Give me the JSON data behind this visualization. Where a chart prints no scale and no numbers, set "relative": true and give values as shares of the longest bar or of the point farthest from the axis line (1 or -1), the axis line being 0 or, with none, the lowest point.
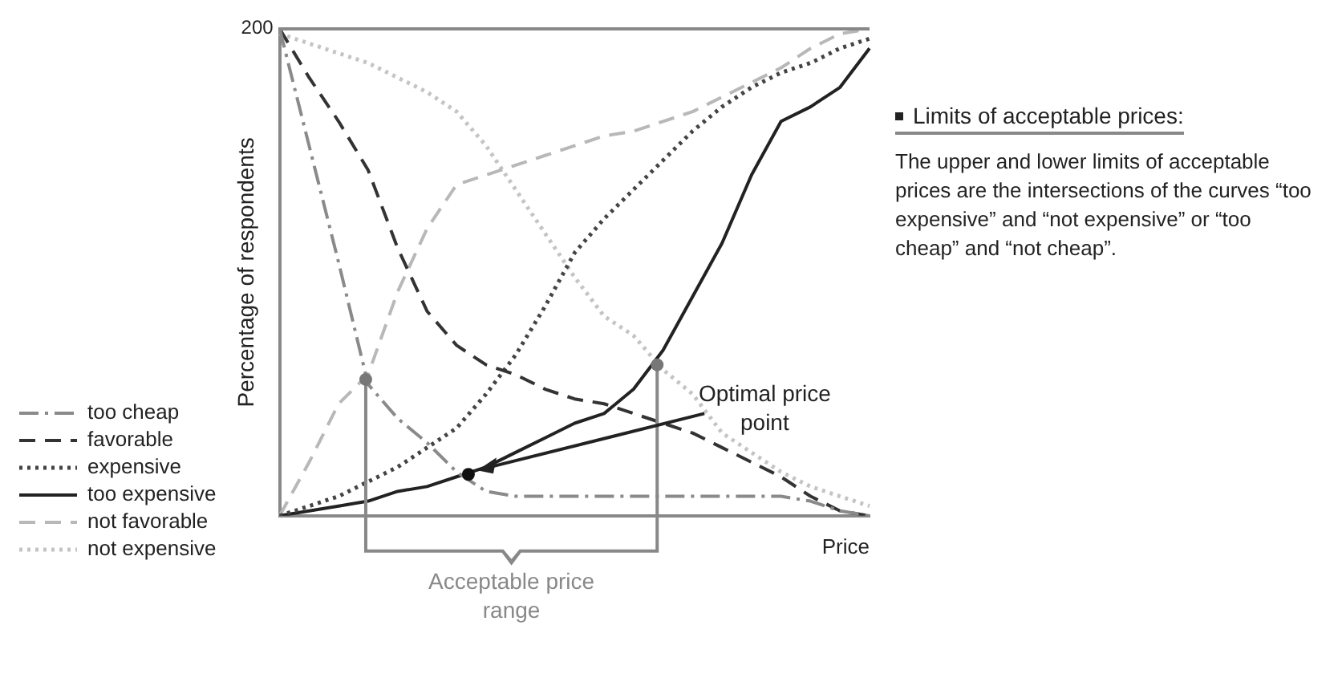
{
  "chart_data": {
    "type": "line",
    "relative": true,
    "xlabel": "Price",
    "ylabel": "Percentage of respondents",
    "legend": "left",
    "marker": "none",
    "categories": [
      null,
      null,
      null,
      null,
      null,
      null,
      null,
      null,
      null,
      null,
      null,
      null,
      null,
      null,
      null,
      null,
      null,
      null,
      null,
      null,
      null
    ],
    "series": [
      {
        "name": "too cheap",
        "color": "#8a8a8a",
        "line_style": "dashdot",
        "values": [
          1.0,
          0.76,
          0.52,
          0.27,
          0.2,
          0.15,
          0.09,
          0.05,
          0.04,
          0.04,
          0.04,
          0.04,
          0.04,
          0.04,
          0.04,
          0.04,
          0.04,
          0.04,
          0.03,
          0.01,
          0
        ]
      },
      {
        "name": "favorable",
        "color": "#333333",
        "line_style": "dashed",
        "values": [
          1.0,
          0.9,
          0.81,
          0.71,
          0.55,
          0.42,
          0.35,
          0.31,
          0.29,
          0.26,
          0.24,
          0.23,
          0.21,
          0.19,
          0.17,
          0.14,
          0.11,
          0.08,
          0.04,
          0.01,
          0
        ]
      },
      {
        "name": "expensive",
        "color": "#444444",
        "line_style": "dotted",
        "values": [
          0,
          0.02,
          0.04,
          0.07,
          0.1,
          0.14,
          0.18,
          0.25,
          0.33,
          0.43,
          0.54,
          0.61,
          0.67,
          0.73,
          0.79,
          0.84,
          0.88,
          0.91,
          0.93,
          0.96,
          0.98
        ]
      },
      {
        "name": "too expensive",
        "color": "#222222",
        "line_style": "solid",
        "values": [
          0,
          0.01,
          0.02,
          0.03,
          0.05,
          0.06,
          0.08,
          0.1,
          0.13,
          0.16,
          0.19,
          0.21,
          0.26,
          0.34,
          0.45,
          0.56,
          0.7,
          0.81,
          0.84,
          0.88,
          0.96
        ]
      },
      {
        "name": "not favorable",
        "color": "#b8b8b8",
        "line_style": "dashed",
        "values": [
          0,
          0.11,
          0.23,
          0.29,
          0.46,
          0.59,
          0.68,
          0.7,
          0.72,
          0.74,
          0.76,
          0.78,
          0.79,
          0.81,
          0.83,
          0.86,
          0.89,
          0.92,
          0.96,
          0.99,
          1.0
        ]
      },
      {
        "name": "not expensive",
        "color": "#c4c4c4",
        "line_style": "dotted",
        "values": [
          0.99,
          0.97,
          0.95,
          0.93,
          0.9,
          0.87,
          0.83,
          0.76,
          0.67,
          0.58,
          0.49,
          0.41,
          0.37,
          0.3,
          0.25,
          0.17,
          0.13,
          0.09,
          0.06,
          0.04,
          0.02
        ]
      }
    ],
    "annotations": [
      "200",
      "Optimal price point",
      "Acceptable price range",
      "Limits of acceptable prices:",
      "The upper and lower limits of acceptable prices are the intersections of the curves “too expensive” and “not expensive” or “too cheap” and “not cheap”."
    ]
  }
}
